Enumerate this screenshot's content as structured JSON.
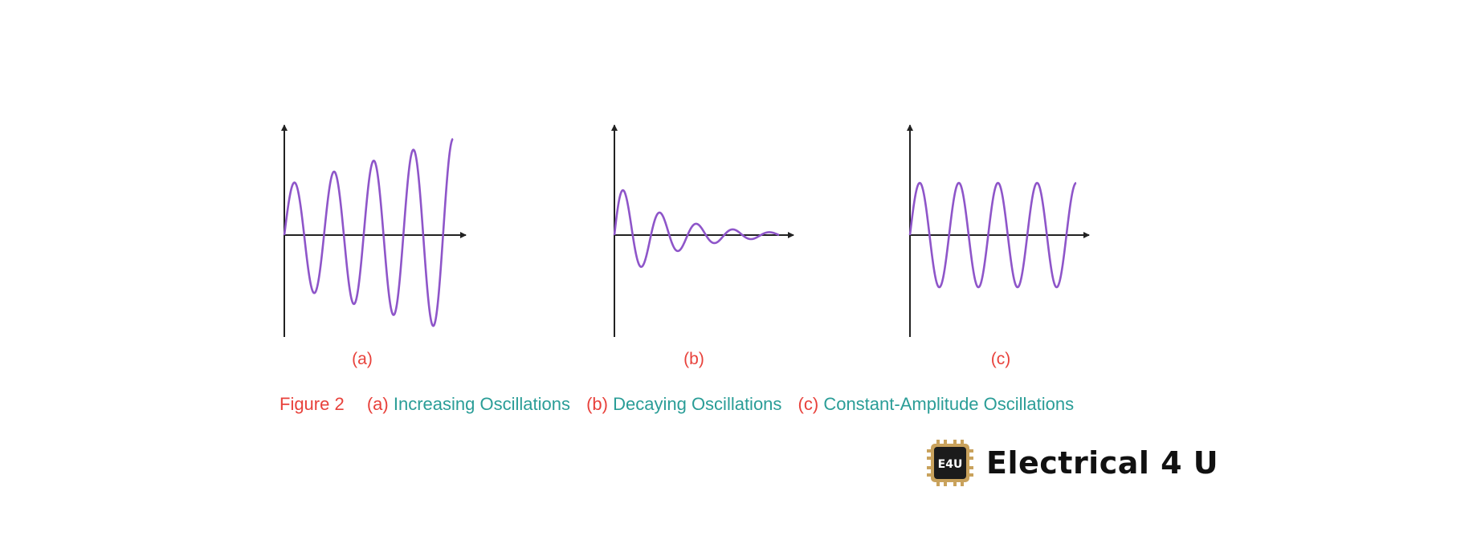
{
  "colors": {
    "wave": "#8e55c9",
    "axis": "#222222",
    "label_red": "#e8413b",
    "caption_teal": "#2a9d97",
    "logo_gold": "#c9a25c",
    "logo_dark": "#1b1b1b"
  },
  "panels": [
    {
      "id": "a",
      "label": "(a)",
      "behavior": "increasing"
    },
    {
      "id": "b",
      "label": "(b)",
      "behavior": "decaying"
    },
    {
      "id": "c",
      "label": "(c)",
      "behavior": "constant"
    }
  ],
  "caption": {
    "figure": "Figure 2",
    "items": [
      {
        "marker": "(a)",
        "text": "Increasing Oscillations"
      },
      {
        "marker": "(b)",
        "text": "Decaying Oscillations"
      },
      {
        "marker": "(c)",
        "text": "Constant-Amplitude Oscillations"
      }
    ]
  },
  "logo": {
    "badge": "E4U",
    "text": "Electrical 4 U"
  }
}
